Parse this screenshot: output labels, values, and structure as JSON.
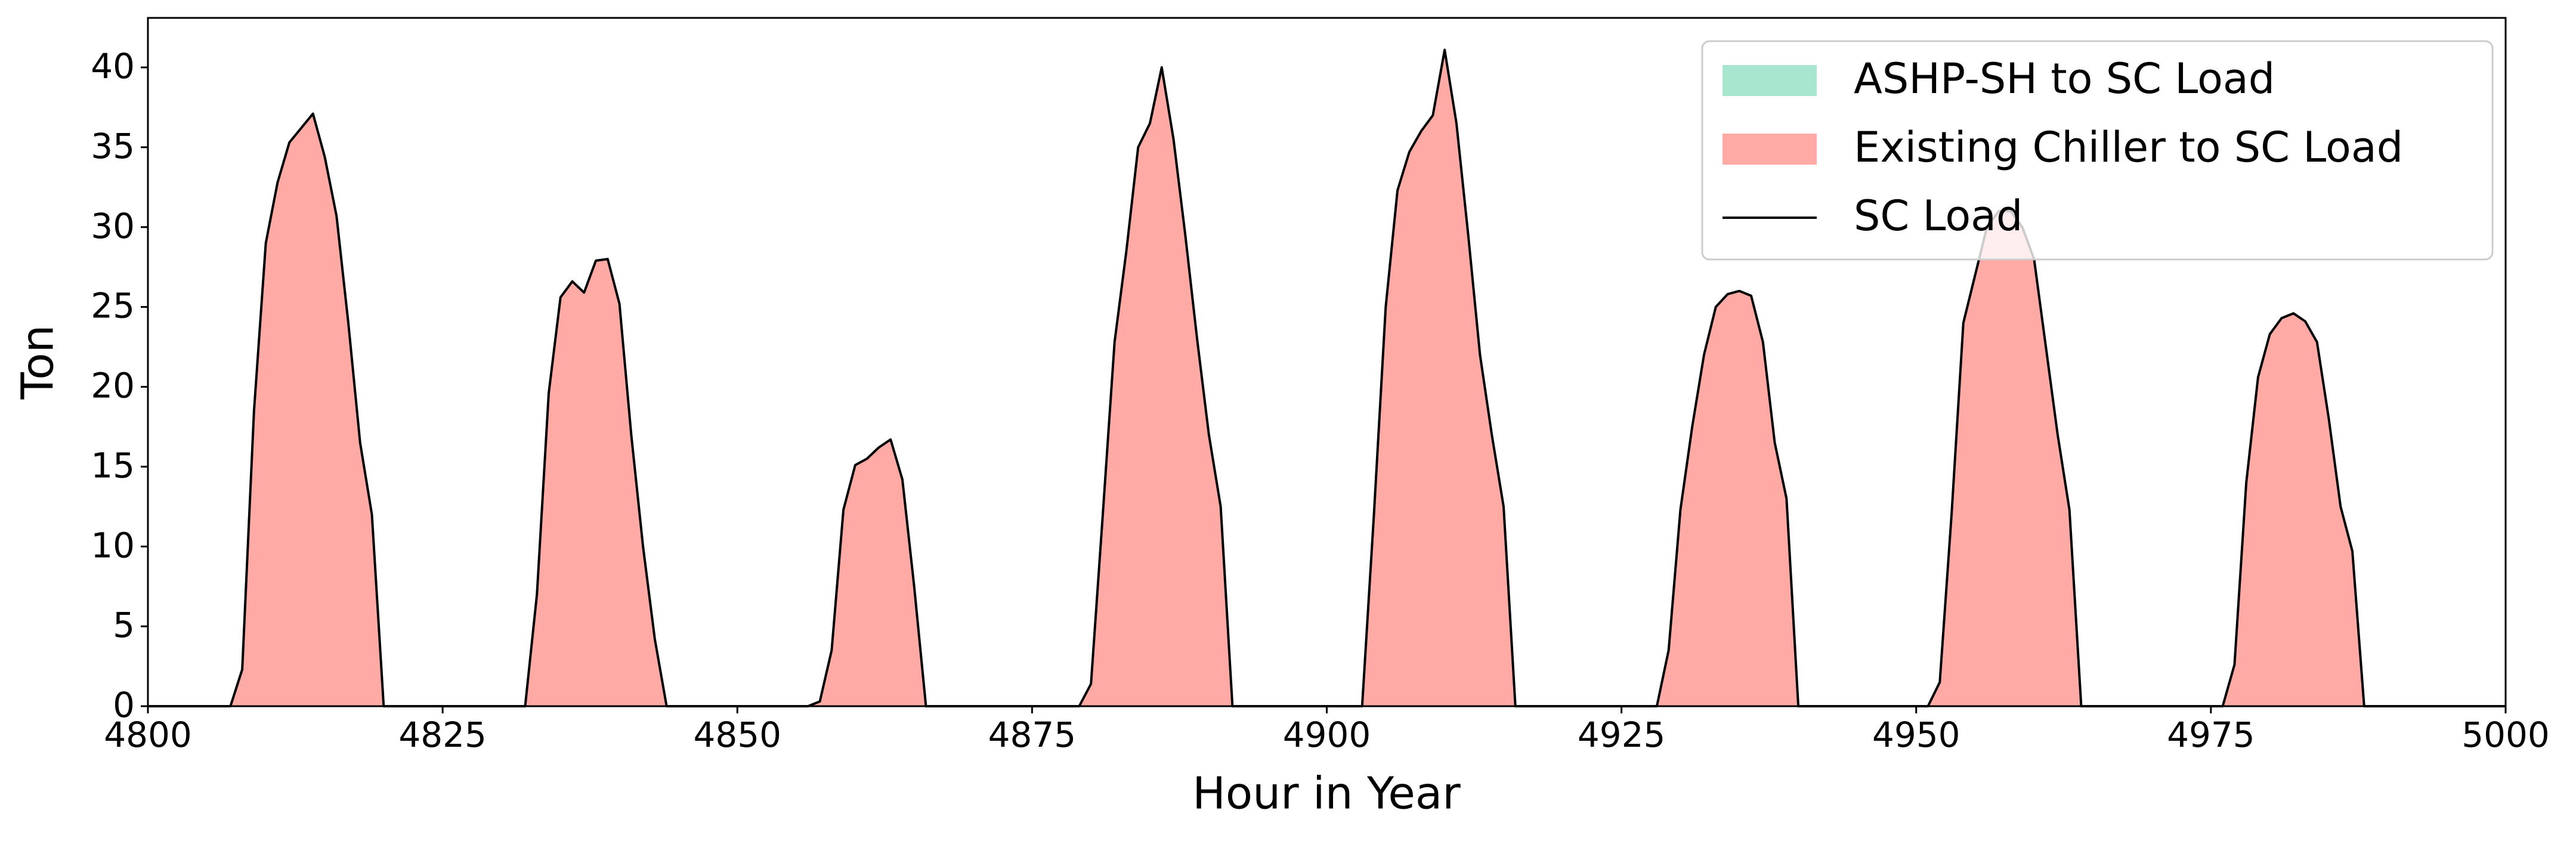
{
  "chart_data": {
    "type": "stacked_area",
    "xlabel": "Hour in Year",
    "ylabel": "Ton",
    "xlim": [
      4800,
      5000
    ],
    "ylim": [
      0,
      43.1
    ],
    "xticks": [
      4800,
      4825,
      4850,
      4875,
      4900,
      4925,
      4950,
      4975,
      5000
    ],
    "yticks": [
      0,
      5,
      10,
      15,
      20,
      25,
      30,
      35,
      40
    ],
    "grid": false,
    "legend": "upper right",
    "x": [
      4800,
      4807,
      4808,
      4809,
      4810,
      4811,
      4812,
      4813,
      4814,
      4815,
      4816,
      4817,
      4818,
      4819,
      4820,
      4832,
      4833,
      4834,
      4835,
      4836,
      4837,
      4838,
      4839,
      4840,
      4841,
      4842,
      4843,
      4844,
      4856,
      4857,
      4858,
      4859,
      4860,
      4861,
      4862,
      4863,
      4864,
      4865,
      4866,
      4879,
      4880,
      4881,
      4882,
      4883,
      4884,
      4885,
      4886,
      4887,
      4888,
      4889,
      4890,
      4891,
      4892,
      4903,
      4904,
      4905,
      4906,
      4907,
      4908,
      4909,
      4910,
      4911,
      4912,
      4913,
      4914,
      4915,
      4916,
      4928,
      4929,
      4930,
      4931,
      4932,
      4933,
      4934,
      4935,
      4936,
      4937,
      4938,
      4939,
      4940,
      4951,
      4952,
      4953,
      4954,
      4955,
      4956,
      4957,
      4958,
      4959,
      4960,
      4961,
      4962,
      4963,
      4964,
      4976,
      4977,
      4978,
      4979,
      4980,
      4981,
      4982,
      4983,
      4984,
      4985,
      4986,
      4987,
      4988,
      5000
    ],
    "series": [
      {
        "name": "ASHP-SH to SC Load",
        "color": "#a8e6cf",
        "values": [
          0,
          0,
          0,
          0,
          0,
          0,
          0,
          0,
          0,
          0,
          0,
          0,
          0,
          0,
          0,
          0,
          0,
          0,
          0,
          0,
          0,
          0,
          0,
          0,
          0,
          0,
          0,
          0,
          0,
          0,
          0,
          0,
          0,
          0,
          0,
          0,
          0,
          0,
          0,
          0,
          0,
          0,
          0,
          0,
          0,
          0,
          0,
          0,
          0,
          0,
          0,
          0,
          0,
          0,
          0,
          0,
          0,
          0,
          0,
          0,
          0,
          0,
          0,
          0,
          0,
          0,
          0,
          0,
          0,
          0,
          0,
          0,
          0,
          0,
          0,
          0,
          0,
          0,
          0,
          0,
          0,
          0,
          0,
          0,
          0,
          0,
          0,
          0,
          0,
          0,
          0,
          0,
          0,
          0,
          0,
          0,
          0,
          0,
          0,
          0,
          0,
          0,
          0,
          0,
          0,
          0,
          0,
          0
        ]
      },
      {
        "name": "Existing Chiller to SC Load",
        "color": "#ffaaa5",
        "values": [
          0,
          0,
          2.3,
          18.5,
          29,
          32.8,
          35.3,
          36.2,
          37.1,
          34.4,
          30.7,
          24,
          16.5,
          12,
          0,
          0,
          7,
          19.6,
          25.6,
          26.6,
          25.9,
          27.9,
          28,
          25.2,
          17,
          10,
          4.2,
          0,
          0,
          0.3,
          3.5,
          12.3,
          15.1,
          15.5,
          16.2,
          16.7,
          14.2,
          7.5,
          0,
          0,
          1.4,
          12,
          22.8,
          28.5,
          35,
          36.5,
          40,
          35.5,
          29.5,
          23,
          17,
          12.5,
          0,
          0,
          12,
          25,
          32.3,
          34.7,
          36,
          37,
          41.1,
          36.5,
          29.5,
          22,
          17,
          12.5,
          0,
          0,
          3.5,
          12.3,
          17.5,
          22,
          25,
          25.8,
          26,
          25.7,
          22.8,
          16.5,
          13,
          0,
          0,
          1.5,
          12,
          24,
          27,
          30,
          31,
          31,
          30,
          28,
          22.5,
          17,
          12.3,
          0,
          0,
          2.6,
          14,
          20.6,
          23.3,
          24.3,
          24.6,
          24.1,
          22.8,
          18,
          12.5,
          9.7,
          0,
          0
        ]
      }
    ],
    "line": {
      "name": "SC Load",
      "color": "#000000",
      "values": [
        0,
        0,
        2.3,
        18.5,
        29,
        32.8,
        35.3,
        36.2,
        37.1,
        34.4,
        30.7,
        24,
        16.5,
        12,
        0,
        0,
        7,
        19.6,
        25.6,
        26.6,
        25.9,
        27.9,
        28,
        25.2,
        17,
        10,
        4.2,
        0,
        0,
        0.3,
        3.5,
        12.3,
        15.1,
        15.5,
        16.2,
        16.7,
        14.2,
        7.5,
        0,
        0,
        1.4,
        12,
        22.8,
        28.5,
        35,
        36.5,
        40,
        35.5,
        29.5,
        23,
        17,
        12.5,
        0,
        0,
        12,
        25,
        32.3,
        34.7,
        36,
        37,
        41.1,
        36.5,
        29.5,
        22,
        17,
        12.5,
        0,
        0,
        3.5,
        12.3,
        17.5,
        22,
        25,
        25.8,
        26,
        25.7,
        22.8,
        16.5,
        13,
        0,
        0,
        1.5,
        12,
        24,
        27,
        30,
        31,
        31,
        30,
        28,
        22.5,
        17,
        12.3,
        0,
        0,
        2.6,
        14,
        20.6,
        23.3,
        24.3,
        24.6,
        24.1,
        22.8,
        18,
        12.5,
        9.7,
        0,
        0
      ]
    }
  }
}
